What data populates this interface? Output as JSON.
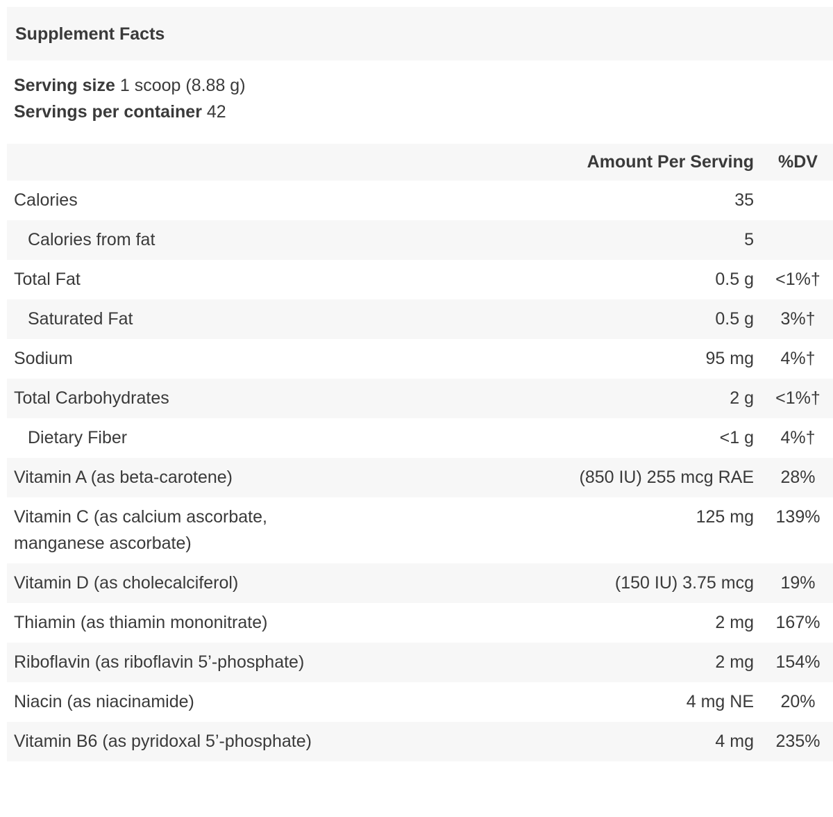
{
  "panel": {
    "title": "Supplement Facts",
    "serving": {
      "size_label": "Serving size",
      "size_value": "1 scoop (8.88 g)",
      "servings_label": "Servings per container",
      "servings_value": "42"
    },
    "table": {
      "headers": {
        "nutrient": "",
        "amount": "Amount Per Serving",
        "dv": "%DV"
      },
      "rows": [
        {
          "label": "Calories",
          "amount": "35",
          "dv": "",
          "indent": false
        },
        {
          "label": "Calories from fat",
          "amount": "5",
          "dv": "",
          "indent": true
        },
        {
          "label": "Total Fat",
          "amount": "0.5 g",
          "dv": "<1%†",
          "indent": false
        },
        {
          "label": "Saturated Fat",
          "amount": "0.5 g",
          "dv": "3%†",
          "indent": true
        },
        {
          "label": "Sodium",
          "amount": "95 mg",
          "dv": "4%†",
          "indent": false
        },
        {
          "label": "Total Carbohydrates",
          "amount": "2 g",
          "dv": "<1%†",
          "indent": false
        },
        {
          "label": "Dietary Fiber",
          "amount": "<1 g",
          "dv": "4%†",
          "indent": true
        },
        {
          "label": "Vitamin A (as beta-carotene)",
          "amount": "(850 IU) 255 mcg RAE",
          "dv": "28%",
          "indent": false
        },
        {
          "label": "Vitamin C (as calcium ascorbate, manganese ascorbate)",
          "amount": "125 mg",
          "dv": "139%",
          "indent": false
        },
        {
          "label": "Vitamin D (as cholecalciferol)",
          "amount": "(150 IU) 3.75 mcg",
          "dv": "19%",
          "indent": false
        },
        {
          "label": "Thiamin (as thiamin mononitrate)",
          "amount": "2 mg",
          "dv": "167%",
          "indent": false
        },
        {
          "label": "Riboflavin (as riboflavin 5’-phosphate)",
          "amount": "2 mg",
          "dv": "154%",
          "indent": false
        },
        {
          "label": "Niacin (as niacinamide)",
          "amount": "4 mg NE",
          "dv": "20%",
          "indent": false
        },
        {
          "label": "Vitamin B6 (as pyridoxal 5’-phosphate)",
          "amount": "4 mg",
          "dv": "235%",
          "indent": false
        }
      ]
    },
    "colors": {
      "stripe": "#f7f7f7",
      "text": "#3a3a3a"
    }
  }
}
